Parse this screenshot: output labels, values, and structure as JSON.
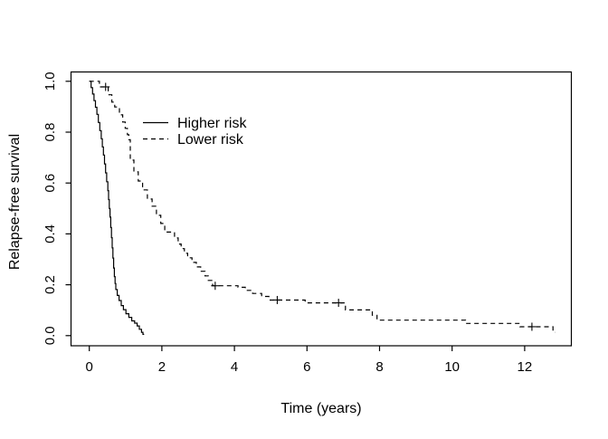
{
  "colors": {
    "line": "#000000",
    "text": "#000000",
    "background": "#ffffff"
  },
  "chart_data": {
    "type": "line",
    "subtype": "kaplan-meier-step-function",
    "title": "",
    "xlabel": "Time (years)",
    "ylabel": "Relapse-free survival",
    "xlim": [
      0,
      12.8
    ],
    "ylim": [
      0,
      1
    ],
    "x_ticks": [
      "0",
      "2",
      "4",
      "6",
      "8",
      "10",
      "12"
    ],
    "y_ticks": [
      "0.0",
      "0.2",
      "0.4",
      "0.6",
      "0.8",
      "1.0"
    ],
    "grid": false,
    "legend": {
      "position": "upper-left-inside",
      "entries": [
        {
          "label": "Higher risk",
          "line_style": "solid"
        },
        {
          "label": "Lower risk",
          "line_style": "dashed"
        }
      ]
    },
    "series": [
      {
        "name": "Higher risk",
        "line_style": "solid",
        "color": "#000000",
        "step_points": [
          [
            0,
            1.0
          ],
          [
            0.05,
            0.975
          ],
          [
            0.09,
            0.95
          ],
          [
            0.13,
            0.924
          ],
          [
            0.17,
            0.898
          ],
          [
            0.21,
            0.87
          ],
          [
            0.25,
            0.838
          ],
          [
            0.29,
            0.806
          ],
          [
            0.33,
            0.774
          ],
          [
            0.36,
            0.742
          ],
          [
            0.39,
            0.71
          ],
          [
            0.42,
            0.675
          ],
          [
            0.45,
            0.64
          ],
          [
            0.48,
            0.605
          ],
          [
            0.51,
            0.57
          ],
          [
            0.53,
            0.535
          ],
          [
            0.55,
            0.5
          ],
          [
            0.57,
            0.466
          ],
          [
            0.59,
            0.425
          ],
          [
            0.61,
            0.385
          ],
          [
            0.63,
            0.345
          ],
          [
            0.65,
            0.305
          ],
          [
            0.67,
            0.266
          ],
          [
            0.69,
            0.232
          ],
          [
            0.71,
            0.205
          ],
          [
            0.73,
            0.181
          ],
          [
            0.77,
            0.158
          ],
          [
            0.82,
            0.138
          ],
          [
            0.88,
            0.118
          ],
          [
            0.94,
            0.102
          ],
          [
            1.01,
            0.086
          ],
          [
            1.09,
            0.072
          ],
          [
            1.17,
            0.058
          ],
          [
            1.25,
            0.049
          ],
          [
            1.32,
            0.038
          ],
          [
            1.38,
            0.025
          ],
          [
            1.44,
            0.013
          ],
          [
            1.48,
            0.005
          ],
          [
            1.51,
            0.005
          ]
        ],
        "censor_marks": []
      },
      {
        "name": "Lower risk",
        "line_style": "dashed",
        "color": "#000000",
        "step_points": [
          [
            0,
            1.0
          ],
          [
            0.28,
            0.978
          ],
          [
            0.52,
            0.947
          ],
          [
            0.62,
            0.918
          ],
          [
            0.7,
            0.899
          ],
          [
            0.83,
            0.868
          ],
          [
            0.92,
            0.84
          ],
          [
            0.99,
            0.815
          ],
          [
            1.05,
            0.79
          ],
          [
            1.09,
            0.77
          ],
          [
            1.13,
            0.69
          ],
          [
            1.23,
            0.644
          ],
          [
            1.35,
            0.608
          ],
          [
            1.47,
            0.573
          ],
          [
            1.6,
            0.537
          ],
          [
            1.73,
            0.509
          ],
          [
            1.85,
            0.473
          ],
          [
            1.97,
            0.441
          ],
          [
            2.08,
            0.407
          ],
          [
            2.35,
            0.384
          ],
          [
            2.45,
            0.36
          ],
          [
            2.53,
            0.342
          ],
          [
            2.62,
            0.324
          ],
          [
            2.71,
            0.306
          ],
          [
            2.83,
            0.288
          ],
          [
            2.95,
            0.27
          ],
          [
            3.07,
            0.253
          ],
          [
            3.19,
            0.235
          ],
          [
            3.28,
            0.217
          ],
          [
            3.4,
            0.196
          ],
          [
            4.1,
            0.19
          ],
          [
            4.3,
            0.178
          ],
          [
            4.5,
            0.166
          ],
          [
            4.75,
            0.154
          ],
          [
            4.95,
            0.14
          ],
          [
            5.95,
            0.129
          ],
          [
            7.06,
            0.101
          ],
          [
            7.8,
            0.08
          ],
          [
            7.93,
            0.061
          ],
          [
            10.37,
            0.048
          ],
          [
            11.87,
            0.035
          ],
          [
            12.78,
            0.013
          ],
          [
            12.84,
            0.013
          ]
        ],
        "censor_marks": [
          [
            0.45,
            0.978
          ],
          [
            3.47,
            0.196
          ],
          [
            5.18,
            0.14
          ],
          [
            6.87,
            0.129
          ],
          [
            12.2,
            0.035
          ]
        ]
      }
    ]
  }
}
